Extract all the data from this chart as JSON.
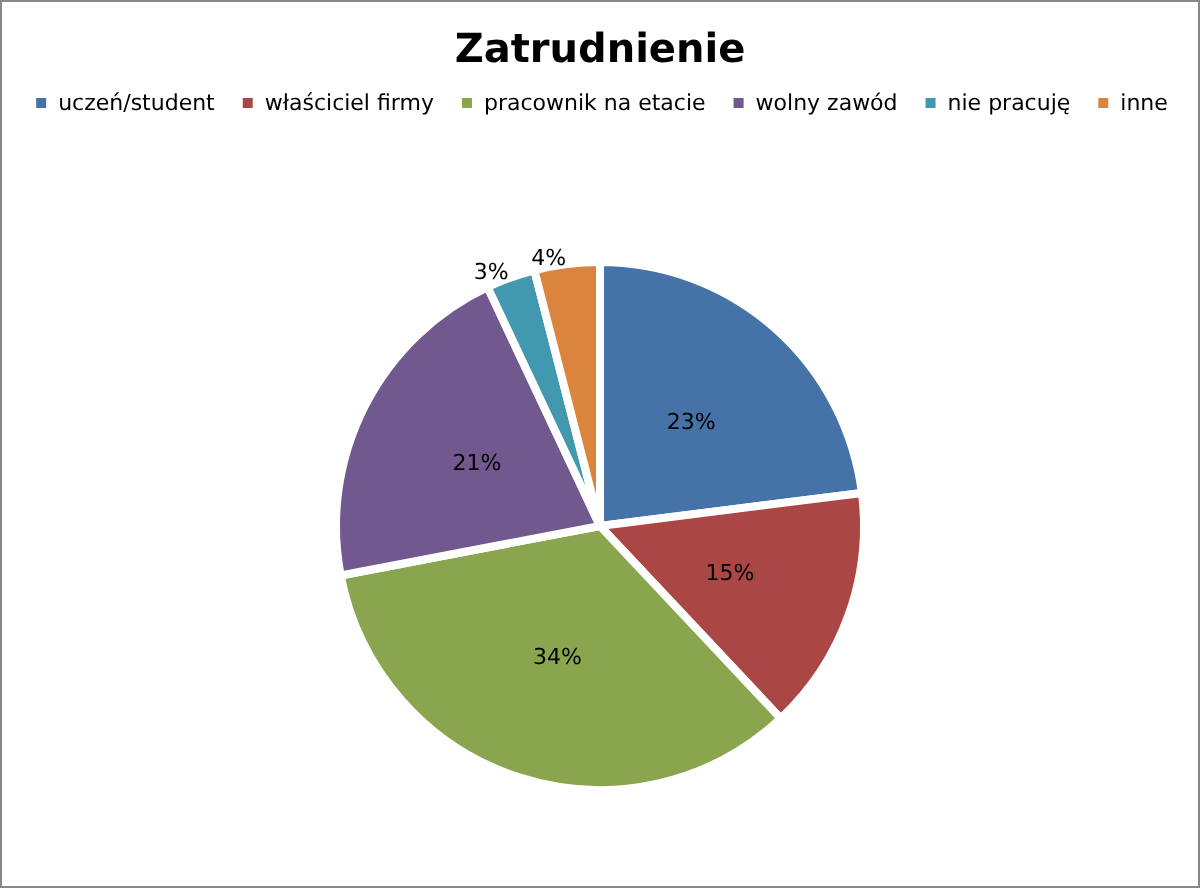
{
  "chart_data": {
    "type": "pie",
    "title": "Zatrudnienie",
    "categories": [
      "uczeń/student",
      "właściciel firmy",
      "pracownik na etacie",
      "wolny zawód",
      "nie pracuję",
      "inne"
    ],
    "values": [
      23,
      15,
      34,
      21,
      3,
      4
    ],
    "value_labels": [
      "23%",
      "15%",
      "34%",
      "21%",
      "3%",
      "4%"
    ],
    "colors": [
      "#4572a7",
      "#aa4643",
      "#89a54e",
      "#71588f",
      "#4198af",
      "#db843d"
    ],
    "legend": "top"
  }
}
